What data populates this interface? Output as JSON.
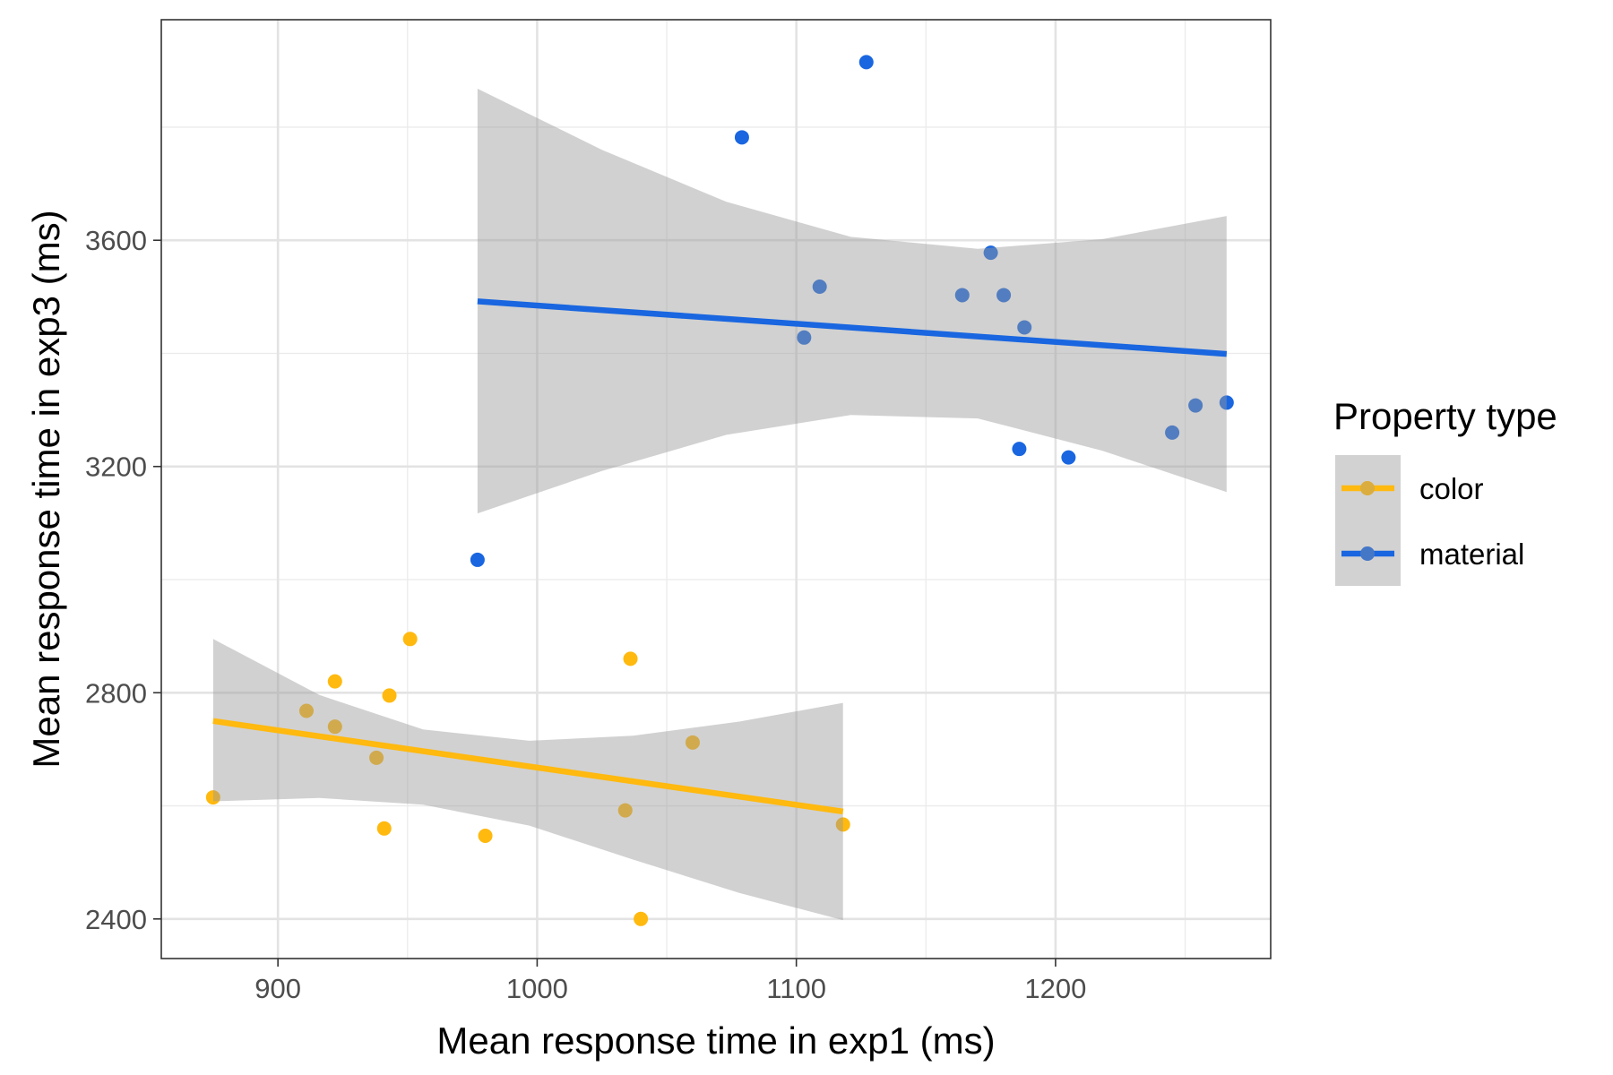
{
  "chart_data": {
    "type": "scatter",
    "xlabel": "Mean response time in exp1 (ms)",
    "ylabel": "Mean response time in exp3 (ms)",
    "xlim": [
      855,
      1283
    ],
    "ylim": [
      2330,
      3990
    ],
    "x_ticks": [
      900,
      1000,
      1100,
      1200
    ],
    "y_ticks": [
      2400,
      2800,
      3200,
      3600
    ],
    "x_tick_labels": [
      "900",
      "1000",
      "1100",
      "1200"
    ],
    "y_tick_labels": [
      "2400",
      "2800",
      "3200",
      "3600"
    ],
    "grid": true,
    "legend": {
      "title": "Property type",
      "position": "right"
    },
    "series": [
      {
        "name": "color",
        "color": "#FFB90F",
        "points": [
          [
            875,
            2615
          ],
          [
            911,
            2768
          ],
          [
            922,
            2820
          ],
          [
            922,
            2740
          ],
          [
            938,
            2685
          ],
          [
            941,
            2560
          ],
          [
            943,
            2795
          ],
          [
            951,
            2895
          ],
          [
            980,
            2547
          ],
          [
            1034,
            2592
          ],
          [
            1036,
            2860
          ],
          [
            1040,
            2400
          ],
          [
            1060,
            2712
          ],
          [
            1118,
            2567
          ]
        ],
        "fit": {
          "x": [
            875,
            1118
          ],
          "y": [
            2750,
            2590
          ],
          "band_x": [
            875,
            916,
            956,
            997,
            1037,
            1078,
            1118
          ],
          "band_upper": [
            2895,
            2796,
            2735,
            2715,
            2724,
            2749,
            2782
          ],
          "band_lower": [
            2608,
            2614,
            2602,
            2565,
            2505,
            2446,
            2398
          ]
        }
      },
      {
        "name": "material",
        "color": "#1966E0",
        "points": [
          [
            977,
            3035
          ],
          [
            1079,
            3782
          ],
          [
            1103,
            3428
          ],
          [
            1109,
            3518
          ],
          [
            1127,
            3915
          ],
          [
            1164,
            3503
          ],
          [
            1175,
            3578
          ],
          [
            1180,
            3503
          ],
          [
            1186,
            3231
          ],
          [
            1188,
            3446
          ],
          [
            1205,
            3216
          ],
          [
            1245,
            3260
          ],
          [
            1254,
            3308
          ],
          [
            1266,
            3313
          ]
        ],
        "fit": {
          "x": [
            977,
            1266
          ],
          "y": [
            3492,
            3399
          ],
          "band_x": [
            977,
            1025,
            1073,
            1121,
            1170,
            1218,
            1266
          ],
          "band_upper": [
            3868,
            3760,
            3668,
            3606,
            3585,
            3602,
            3643
          ],
          "band_lower": [
            3117,
            3192,
            3256,
            3291,
            3285,
            3228,
            3155
          ]
        }
      }
    ]
  }
}
